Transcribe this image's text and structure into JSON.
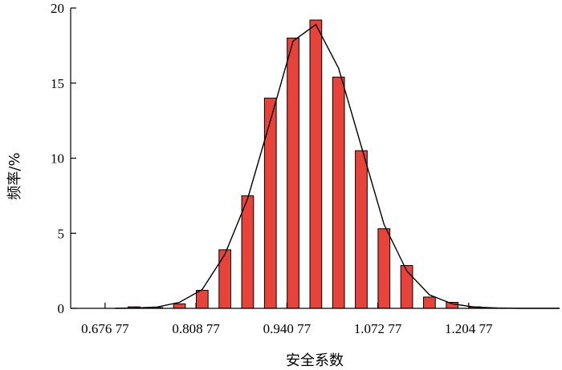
{
  "chart_data": {
    "type": "bar",
    "xlabel": "安全系数",
    "ylabel": "频率/%",
    "ylim": [
      0,
      20
    ],
    "xlim": [
      0.62677,
      1.33677
    ],
    "y_ticks": [
      0,
      5,
      10,
      15,
      20
    ],
    "x_ticks": [
      {
        "value": 0.67677,
        "label": "0.676 77"
      },
      {
        "value": 0.80877,
        "label": "0.808 77"
      },
      {
        "value": 0.94077,
        "label": "0.940 77"
      },
      {
        "value": 1.07277,
        "label": "1.072 77"
      },
      {
        "value": 1.20477,
        "label": "1.204 77"
      }
    ],
    "bin_width": 0.033,
    "series": [
      {
        "kind": "bar",
        "x": [
          0.71877,
          0.75177,
          0.78477,
          0.81777,
          0.85077,
          0.88377,
          0.91677,
          0.94977,
          0.98277,
          1.01577,
          1.04877,
          1.08177,
          1.11477,
          1.14777,
          1.18077,
          1.21377
        ],
        "values": [
          0.1,
          0.05,
          0.3,
          1.2,
          3.9,
          7.5,
          14.0,
          18.0,
          19.2,
          15.4,
          10.5,
          5.3,
          2.85,
          0.75,
          0.4,
          0.1
        ]
      },
      {
        "kind": "line",
        "x": [
          0.69127,
          0.71877,
          0.75177,
          0.78477,
          0.81777,
          0.85077,
          0.88377,
          0.91677,
          0.94977,
          0.98277,
          1.01577,
          1.04877,
          1.08177,
          1.11477,
          1.14777,
          1.18077,
          1.21377,
          1.24677,
          1.27977,
          1.31277,
          1.33677
        ],
        "values": [
          0,
          0.02,
          0.08,
          0.4,
          1.25,
          3.6,
          7.3,
          12.5,
          17.8,
          18.9,
          16.0,
          10.8,
          5.6,
          2.5,
          0.9,
          0.3,
          0.08,
          0.02,
          0,
          0,
          0
        ]
      }
    ],
    "colors": {
      "bar_fill": "#e8433a",
      "bar_stroke": "#000000",
      "line": "#000000",
      "axis": "#000000"
    }
  }
}
